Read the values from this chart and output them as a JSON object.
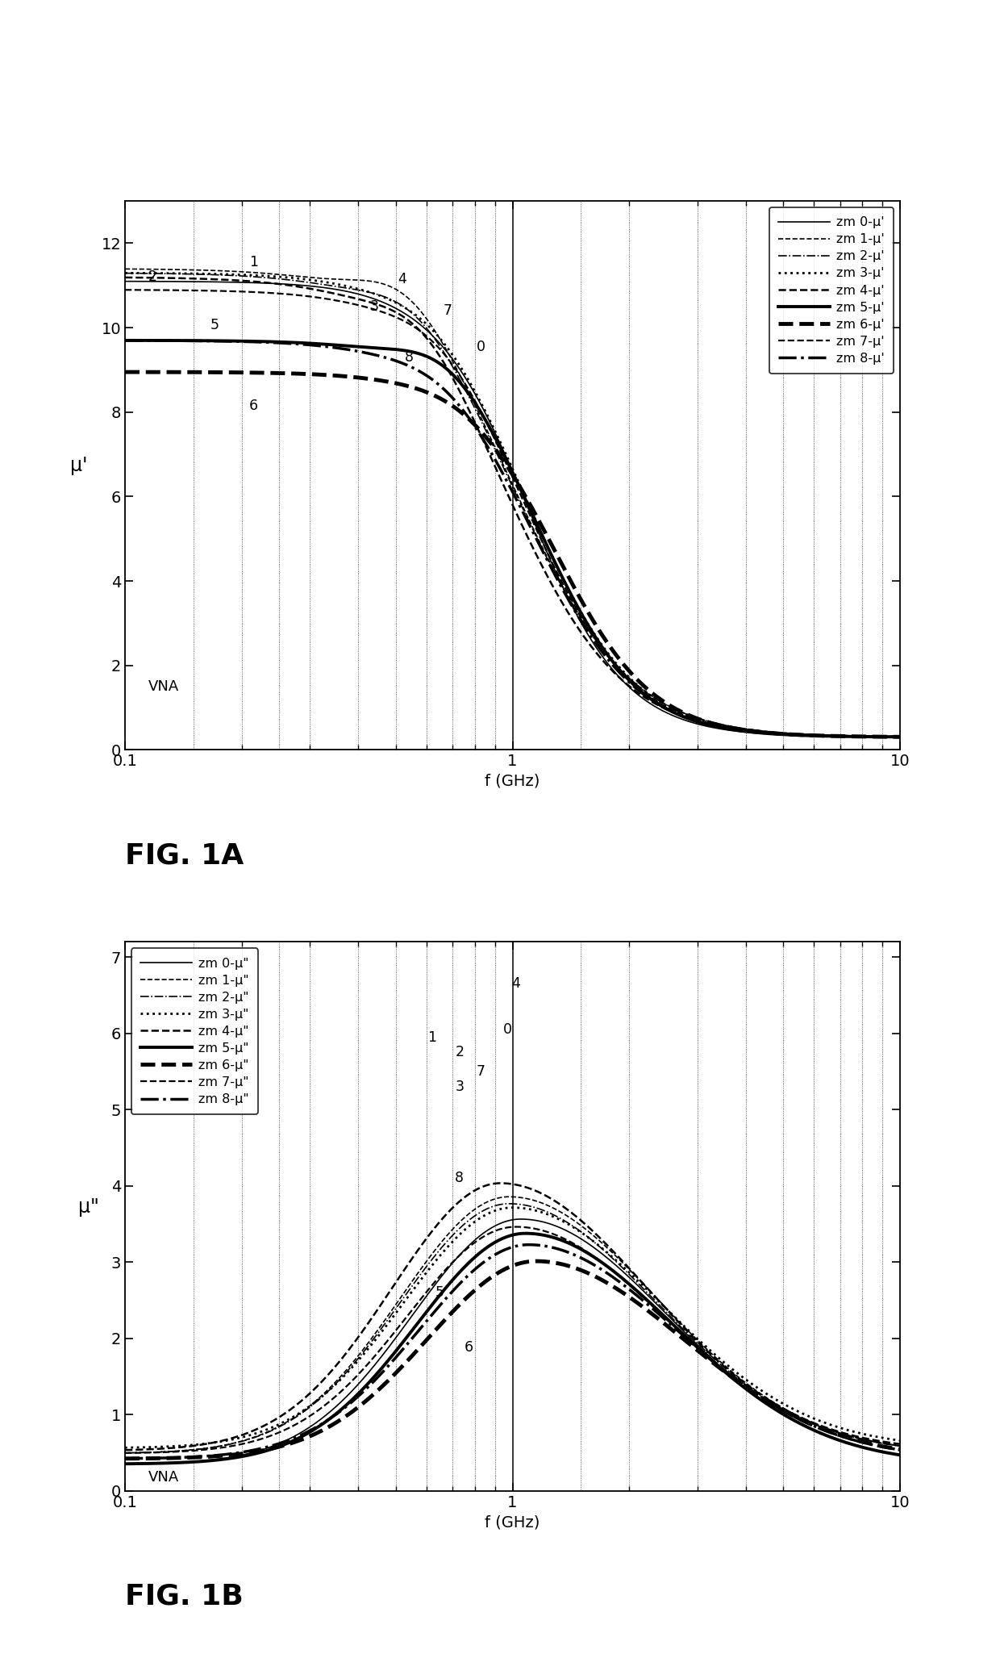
{
  "ylabel_a": "μ'",
  "ylabel_b": "μ\"",
  "xlabel": "f (GHz)",
  "ylim_a": [
    0,
    13
  ],
  "ylim_b": [
    0,
    7.2
  ],
  "xlim": [
    0.1,
    10
  ],
  "legend_labels_a": [
    "zm 0-μ'",
    "zm 1-μ'",
    "zm 2-μ'",
    "zm 3-μ'",
    "zm 4-μ'",
    "zm 5-μ'",
    "zm 6-μ'",
    "zm 7-μ'",
    "zm 8-μ'"
  ],
  "legend_labels_b": [
    "zm 0-μ\"",
    "zm 1-μ\"",
    "zm 2-μ\"",
    "zm 3-μ\"",
    "zm 4-μ\"",
    "zm 5-μ\"",
    "zm 6-μ\"",
    "zm 7-μ\"",
    "zm 8-μ\""
  ],
  "line_styles": [
    {
      "ls": "-",
      "lw": 1.2
    },
    {
      "ls": "--",
      "lw": 1.2
    },
    {
      "ls": "-.",
      "lw": 1.2
    },
    {
      "ls": ":",
      "lw": 2.0
    },
    {
      "ls": "--",
      "lw": 1.8
    },
    {
      "ls": "-",
      "lw": 2.8
    },
    {
      "ls": "--",
      "lw": 3.5
    },
    {
      "ls": "--",
      "lw": 1.6
    },
    {
      "ls": "-.",
      "lw": 2.5
    }
  ],
  "curve_params_a": [
    {
      "mu_low": 10.8,
      "mu_high": 10.5,
      "f_res": 0.72,
      "f_cut": 1.1,
      "bump": 0.0,
      "n": 3.5
    },
    {
      "mu_low": 11.1,
      "mu_high": 11.8,
      "f_res": 0.55,
      "f_cut": 1.05,
      "bump": 0.7,
      "n": 3.0
    },
    {
      "mu_low": 11.0,
      "mu_high": 11.5,
      "f_res": 0.58,
      "f_cut": 1.05,
      "bump": 0.5,
      "n": 3.0
    },
    {
      "mu_low": 11.0,
      "mu_high": 11.2,
      "f_res": 0.65,
      "f_cut": 1.1,
      "bump": 0.2,
      "n": 3.2
    },
    {
      "mu_low": 10.9,
      "mu_high": 11.5,
      "f_res": 0.62,
      "f_cut": 1.0,
      "bump": 0.6,
      "n": 3.0
    },
    {
      "mu_low": 9.4,
      "mu_high": 10.0,
      "f_res": 0.7,
      "f_cut": 1.2,
      "bump": 0.5,
      "n": 3.5
    },
    {
      "mu_low": 8.65,
      "mu_high": 8.7,
      "f_res": 0.75,
      "f_cut": 1.3,
      "bump": 0.1,
      "n": 3.5
    },
    {
      "mu_low": 10.6,
      "mu_high": 10.9,
      "f_res": 0.68,
      "f_cut": 1.1,
      "bump": 0.3,
      "n": 3.2
    },
    {
      "mu_low": 9.4,
      "mu_high": 9.6,
      "f_res": 0.7,
      "f_cut": 1.15,
      "bump": 0.2,
      "n": 3.3
    }
  ],
  "curve_params_b": [
    {
      "mu_s": 10.8,
      "f0": 1.05,
      "damp": 1.5,
      "mu_inf": 0.5
    },
    {
      "mu_s": 11.8,
      "f0": 0.98,
      "damp": 1.4,
      "mu_inf": 0.7
    },
    {
      "mu_s": 11.5,
      "f0": 0.98,
      "damp": 1.4,
      "mu_inf": 0.7
    },
    {
      "mu_s": 11.2,
      "f0": 1.0,
      "damp": 1.4,
      "mu_inf": 0.8
    },
    {
      "mu_s": 12.5,
      "f0": 0.93,
      "damp": 1.35,
      "mu_inf": 0.75
    },
    {
      "mu_s": 10.2,
      "f0": 1.08,
      "damp": 1.5,
      "mu_inf": 0.5
    },
    {
      "mu_s": 8.7,
      "f0": 1.15,
      "damp": 1.6,
      "mu_inf": 0.6
    },
    {
      "mu_s": 10.5,
      "f0": 1.02,
      "damp": 1.4,
      "mu_inf": 0.7
    },
    {
      "mu_s": 9.6,
      "f0": 1.1,
      "damp": 1.5,
      "mu_inf": 0.6
    }
  ],
  "label_data_a": {
    "0": [
      0.83,
      9.55
    ],
    "1": [
      0.215,
      11.55
    ],
    "2": [
      0.118,
      11.2
    ],
    "3": [
      0.44,
      10.5
    ],
    "4": [
      0.52,
      11.15
    ],
    "5": [
      0.17,
      10.05
    ],
    "6": [
      0.215,
      8.15
    ],
    "7": [
      0.68,
      10.4
    ],
    "8": [
      0.54,
      9.3
    ]
  },
  "label_data_b": {
    "0": [
      0.97,
      6.05
    ],
    "1": [
      0.62,
      5.95
    ],
    "2": [
      0.73,
      5.75
    ],
    "3": [
      0.73,
      5.3
    ],
    "4": [
      1.02,
      6.65
    ],
    "5": [
      0.65,
      2.6
    ],
    "6": [
      0.77,
      1.88
    ],
    "7": [
      0.83,
      5.5
    ],
    "8": [
      0.73,
      4.1
    ]
  },
  "dotted_vlines": [
    0.15,
    0.2,
    0.25,
    0.3,
    0.4,
    0.5,
    0.6,
    0.7,
    0.8,
    0.9,
    1.5,
    2.0,
    3.0,
    4.0,
    5.0,
    6.0,
    7.0,
    8.0,
    9.0
  ],
  "solid_vline": 1.0,
  "fig_label_a": "FIG. 1A",
  "fig_label_b": "FIG. 1B",
  "vna_text": "VNA"
}
